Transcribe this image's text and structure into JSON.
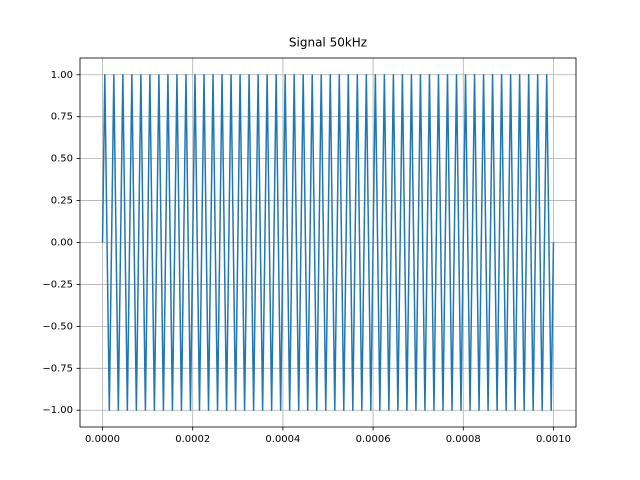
{
  "chart_data": {
    "type": "line",
    "title": "Signal 50kHz",
    "x": [
      0,
      5e-06,
      1e-05,
      1.5e-05,
      2e-05,
      2.5e-05,
      3e-05,
      3.5e-05,
      4e-05,
      4.5e-05,
      5e-05,
      5.5e-05,
      6e-05,
      6.5e-05,
      7e-05,
      7.5e-05,
      8e-05,
      8.5e-05,
      9e-05,
      9.5e-05,
      0.0001,
      0.000105,
      0.00011,
      0.000115,
      0.00012,
      0.000125,
      0.00013,
      0.000135,
      0.00014,
      0.000145,
      0.00015,
      0.000155,
      0.00016,
      0.000165,
      0.00017,
      0.000175,
      0.00018,
      0.000185,
      0.00019,
      0.000195,
      0.0002,
      0.000205,
      0.00021,
      0.000215,
      0.00022,
      0.000225,
      0.00023,
      0.000235,
      0.00024,
      0.000245,
      0.00025,
      0.000255,
      0.00026,
      0.000265,
      0.00027,
      0.000275,
      0.00028,
      0.000285,
      0.00029,
      0.000295,
      0.0003,
      0.000305,
      0.00031,
      0.000315,
      0.00032,
      0.000325,
      0.00033,
      0.000335,
      0.00034,
      0.000345,
      0.00035,
      0.000355,
      0.00036,
      0.000365,
      0.00037,
      0.000375,
      0.00038,
      0.000385,
      0.00039,
      0.000395,
      0.0004,
      0.000405,
      0.00041,
      0.000415,
      0.00042,
      0.000425,
      0.00043,
      0.000435,
      0.00044,
      0.000445,
      0.00045,
      0.000455,
      0.00046,
      0.000465,
      0.00047,
      0.000475,
      0.00048,
      0.000485,
      0.00049,
      0.000495,
      0.0005,
      0.000505,
      0.00051,
      0.000515,
      0.00052,
      0.000525,
      0.00053,
      0.000535,
      0.00054,
      0.000545,
      0.00055,
      0.000555,
      0.00056,
      0.000565,
      0.00057,
      0.000575,
      0.00058,
      0.000585,
      0.00059,
      0.000595,
      0.0006,
      0.000605,
      0.00061,
      0.000615,
      0.00062,
      0.000625,
      0.00063,
      0.000635,
      0.00064,
      0.000645,
      0.00065,
      0.000655,
      0.00066,
      0.000665,
      0.00067,
      0.000675,
      0.00068,
      0.000685,
      0.00069,
      0.000695,
      0.0007,
      0.000705,
      0.00071,
      0.000715,
      0.00072,
      0.000725,
      0.00073,
      0.000735,
      0.00074,
      0.000745,
      0.00075,
      0.000755,
      0.00076,
      0.000765,
      0.00077,
      0.000775,
      0.00078,
      0.000785,
      0.00079,
      0.000795,
      0.0008,
      0.000805,
      0.00081,
      0.000815,
      0.00082,
      0.000825,
      0.00083,
      0.000835,
      0.00084,
      0.000845,
      0.00085,
      0.000855,
      0.00086,
      0.000865,
      0.00087,
      0.000875,
      0.00088,
      0.000885,
      0.00089,
      0.000895,
      0.0009,
      0.000905,
      0.00091,
      0.000915,
      0.00092,
      0.000925,
      0.00093,
      0.000935,
      0.00094,
      0.000945,
      0.00095,
      0.000955,
      0.00096,
      0.000965,
      0.00097,
      0.000975,
      0.00098,
      0.000985,
      0.00099,
      0.000995,
      0.001
    ],
    "series": [
      {
        "color": "#1f77b4",
        "values": [
          0,
          1,
          0,
          -1,
          0,
          1,
          0,
          -1,
          0,
          1,
          0,
          -1,
          0,
          1,
          0,
          -1,
          0,
          1,
          0,
          -1,
          0,
          1,
          0,
          -1,
          0,
          1,
          0,
          -1,
          0,
          1,
          0,
          -1,
          0,
          1,
          0,
          -1,
          0,
          1,
          0,
          -1,
          0,
          1,
          0,
          -1,
          0,
          1,
          0,
          -1,
          0,
          1,
          0,
          -1,
          0,
          1,
          0,
          -1,
          0,
          1,
          0,
          -1,
          0,
          1,
          0,
          -1,
          0,
          1,
          0,
          -1,
          0,
          1,
          0,
          -1,
          0,
          1,
          0,
          -1,
          0,
          1,
          0,
          -1,
          0,
          1,
          0,
          -1,
          0,
          1,
          0,
          -1,
          0,
          1,
          0,
          -1,
          0,
          1,
          0,
          -1,
          0,
          1,
          0,
          -1,
          0,
          1,
          0,
          -1,
          0,
          1,
          0,
          -1,
          0,
          1,
          0,
          -1,
          0,
          1,
          0,
          -1,
          0,
          1,
          0,
          -1,
          0,
          1,
          0,
          -1,
          0,
          1,
          0,
          -1,
          0,
          1,
          0,
          -1,
          0,
          1,
          0,
          -1,
          0,
          1,
          0,
          -1,
          0,
          1,
          0,
          -1,
          0,
          1,
          0,
          -1,
          0,
          1,
          0,
          -1,
          0,
          1,
          0,
          -1,
          0,
          1,
          0,
          -1,
          0,
          1,
          0,
          -1,
          0,
          1,
          0,
          -1,
          0,
          1,
          0,
          -1,
          0,
          1,
          0,
          -1,
          0,
          1,
          0,
          -1,
          0,
          1,
          0,
          -1,
          0,
          1,
          0,
          -1,
          0,
          1,
          0,
          -1,
          0,
          1,
          0,
          -1,
          0,
          1,
          0,
          -1,
          0
        ]
      }
    ],
    "xlim": [
      -5e-05,
      0.00105
    ],
    "xticks": [
      {
        "value": 0,
        "label": "0.0000"
      },
      {
        "value": 0.0002,
        "label": "0.0002"
      },
      {
        "value": 0.0004,
        "label": "0.0004"
      },
      {
        "value": 0.0006,
        "label": "0.0006"
      },
      {
        "value": 0.0008,
        "label": "0.0008"
      },
      {
        "value": 0.001,
        "label": "0.0010"
      }
    ],
    "ylim": [
      -1.1,
      1.1
    ],
    "yticks": [
      {
        "value": -1,
        "label": "−1.00"
      },
      {
        "value": -0.75,
        "label": "−0.75"
      },
      {
        "value": -0.5,
        "label": "−0.50"
      },
      {
        "value": -0.25,
        "label": "−0.25"
      },
      {
        "value": 0,
        "label": "0.00"
      },
      {
        "value": 0.25,
        "label": "0.25"
      },
      {
        "value": 0.5,
        "label": "0.50"
      },
      {
        "value": 0.75,
        "label": "0.75"
      },
      {
        "value": 1,
        "label": "1.00"
      }
    ],
    "grid": true
  }
}
